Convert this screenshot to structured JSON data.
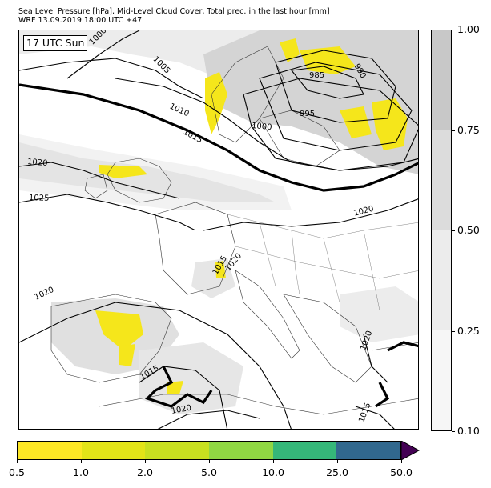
{
  "header": {
    "line1": "Sea Level Pressure [hPa], Mid-Level Cloud Cover, Total prec. in the last hour [mm]",
    "line2": "WRF 13.09.2019 18:00 UTC +47"
  },
  "time_box": "17 UTC Sun",
  "isobar_labels": [
    "1000",
    "1005",
    "1010",
    "1015",
    "1020",
    "1025",
    "985",
    "990",
    "995",
    "1000",
    "1020",
    "1020",
    "1015",
    "1020",
    "1015",
    "1020",
    "1015",
    "1020"
  ],
  "cloud_colorbar": {
    "ticks": [
      "1.00",
      "0.75",
      "0.50",
      "0.25",
      "0.10"
    ],
    "colors": [
      "#c8c8c8",
      "#dcdcdc",
      "#ececec",
      "#f6f6f6"
    ]
  },
  "precip_colorbar": {
    "ticks": [
      "0.5",
      "1.0",
      "2.0",
      "5.0",
      "10.0",
      "25.0",
      "50.0"
    ],
    "colors": [
      "#fde725",
      "#e3e418",
      "#c8e020",
      "#90d743",
      "#35b779",
      "#31688e",
      "#440154"
    ]
  },
  "legend_colors": {
    "cloud": "#c8c8c8",
    "precip_light": "#f5e61b",
    "isobar": "#000000"
  }
}
